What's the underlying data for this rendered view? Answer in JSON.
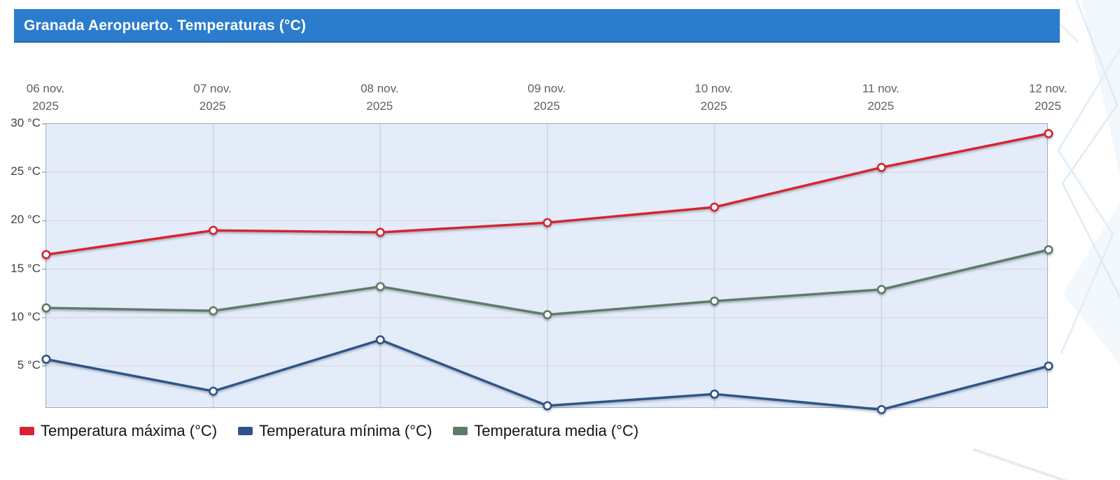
{
  "header": {
    "title": "Granada Aeropuerto. Temperaturas (°C)",
    "bar_color": "#2b7ccd",
    "text_color": "#ffffff"
  },
  "chart_data": {
    "type": "line",
    "title": "Granada Aeropuerto. Temperaturas (°C)",
    "categories": [
      "06 nov.",
      "07 nov.",
      "08 nov.",
      "09 nov.",
      "10 nov.",
      "11 nov.",
      "12 nov."
    ],
    "category_year": "2025",
    "xlabel": "",
    "ylabel": "",
    "yticks": [
      30,
      25,
      20,
      15,
      10,
      5
    ],
    "ytick_suffix": " °C",
    "ylim": [
      0.6,
      30
    ],
    "grid": true,
    "legend_position": "bottom",
    "series": [
      {
        "name": "Temperatura máxima (°C)",
        "color": "#d8232f",
        "values": [
          16.5,
          19.0,
          18.8,
          19.8,
          21.4,
          25.5,
          29.0
        ]
      },
      {
        "name": "Temperatura mínima (°C)",
        "color": "#2d5488",
        "values": [
          5.7,
          2.4,
          7.7,
          0.9,
          2.1,
          0.5,
          5.0
        ]
      },
      {
        "name": "Temperatura media (°C)",
        "color": "#5e7b68",
        "values": [
          11.0,
          10.7,
          13.2,
          10.3,
          11.7,
          12.9,
          17.0
        ]
      }
    ],
    "colors": {
      "plot_bg": "#e3ecf8",
      "plot_border": "#9dadc0",
      "h_grid": "#d4d9e1",
      "v_grid": "#c7cfda",
      "marker_fill": "#ffffff"
    }
  }
}
